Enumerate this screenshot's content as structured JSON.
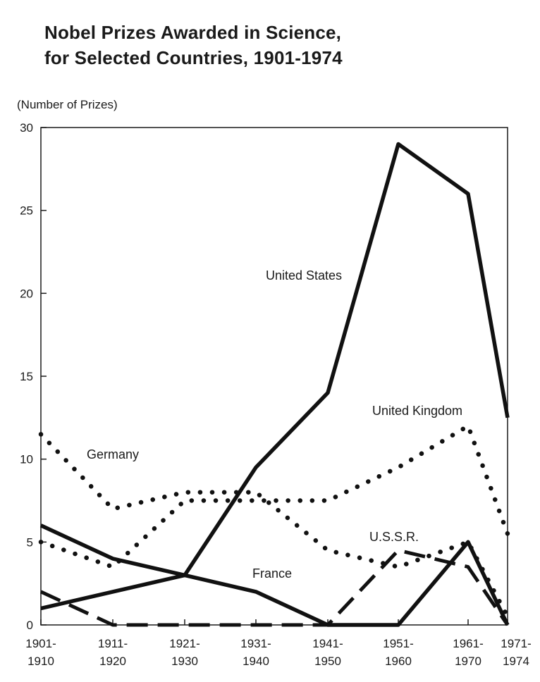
{
  "chart_data": {
    "type": "line",
    "title_line1": "Nobel Prizes Awarded in Science,",
    "title_line2": "for Selected Countries, 1901-1974",
    "ylabel": "(Number of Prizes)",
    "ylim": [
      0,
      30
    ],
    "yticks": [
      0,
      5,
      10,
      15,
      20,
      25,
      30
    ],
    "categories": [
      [
        "1901-",
        "1910"
      ],
      [
        "1911-",
        "1920"
      ],
      [
        "1921-",
        "1930"
      ],
      [
        "1931-",
        "1940"
      ],
      [
        "1941-",
        "1950"
      ],
      [
        "1951-",
        "1960"
      ],
      [
        "1961-",
        "1970"
      ],
      [
        "1971-",
        "1974"
      ]
    ],
    "series": [
      {
        "name": "United States",
        "style": "solid",
        "values": [
          1,
          2,
          3,
          9.5,
          14,
          29,
          26,
          12.5
        ]
      },
      {
        "name": "United Kingdom",
        "style": "dotted",
        "values": [
          5,
          3.5,
          7.5,
          7.5,
          7.5,
          9.5,
          12,
          5.5
        ]
      },
      {
        "name": "Germany",
        "style": "dotted",
        "values": [
          11.5,
          7,
          8,
          8,
          4.5,
          3.5,
          5,
          0.5
        ]
      },
      {
        "name": "France",
        "style": "solid",
        "values": [
          6,
          4,
          3,
          2,
          0,
          0,
          5,
          0
        ]
      },
      {
        "name": "U.S.S.R.",
        "style": "dashed",
        "values": [
          2,
          0,
          0,
          0,
          0,
          4.5,
          3.5,
          0
        ]
      }
    ],
    "grid": false,
    "legend": "inline labels"
  }
}
